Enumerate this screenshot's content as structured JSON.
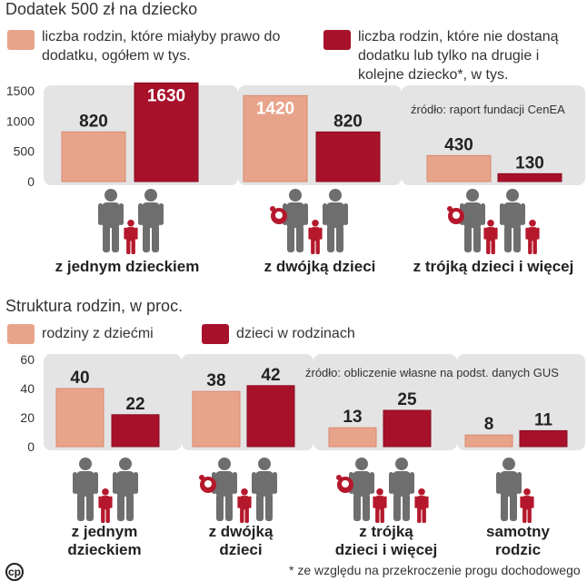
{
  "colors": {
    "light": "#e8a48a",
    "light_edge": "#d9886d",
    "dark": "#a7112a",
    "dark_edge": "#8a0d22",
    "panel": "#e4e4e4",
    "icon_gray": "#6e6e6e",
    "icon_red": "#b5182c"
  },
  "chart1": {
    "title": "Dodatek 500 zł na dziecko",
    "legend_light": "liczba rodzin, które miałyby prawo do dodatku, ogółem w tys.",
    "legend_dark": "liczba rodzin, które nie dostaną dodatku lub tylko na drugie i kolejne dziecko*, w tys.",
    "source": "źródło: raport fundacji CenEA"
  },
  "chart2": {
    "title": "Struktura rodzin, w proc.",
    "legend_light": "rodziny z dziećmi",
    "legend_dark": "dzieci w rodzinach",
    "source": "źródło: obliczenie własne na podst. danych GUS"
  },
  "chart_data": [
    {
      "type": "bar",
      "title": "Dodatek 500 zł na dziecko",
      "categories": [
        "z jednym dzieckiem",
        "z dwójką dzieci",
        "z trójką dzieci i więcej"
      ],
      "series": [
        {
          "name": "liczba rodzin, które miałyby prawo do dodatku, ogółem w tys.",
          "values": [
            820,
            1420,
            430
          ]
        },
        {
          "name": "liczba rodzin, które nie dostaną dodatku lub tylko na drugie i kolejne dziecko*, w tys.",
          "values": [
            1630,
            820,
            130
          ]
        }
      ],
      "yticks": [
        "0",
        "500",
        "1000",
        "1500"
      ],
      "ylim": [
        0,
        1500
      ],
      "ylabel": "",
      "xlabel": ""
    },
    {
      "type": "bar",
      "title": "Struktura rodzin, w proc.",
      "categories": [
        "z jednym dzieckiem",
        "z dwójką dzieci",
        "z trójką dzieci i więcej",
        "samotny rodzic"
      ],
      "series": [
        {
          "name": "rodziny z dziećmi",
          "values": [
            40,
            38,
            13,
            8
          ]
        },
        {
          "name": "dzieci w rodzinach",
          "values": [
            22,
            42,
            25,
            11
          ]
        }
      ],
      "yticks": [
        "0",
        "20",
        "40",
        "60"
      ],
      "ylim": [
        0,
        60
      ],
      "ylabel": "",
      "xlabel": ""
    }
  ],
  "chart1_labels": [
    "z jednym dzieckiem",
    "z dwójką dzieci",
    "z trójką dzieci i więcej"
  ],
  "chart2_labels": [
    [
      "z jednym",
      "dzieckiem"
    ],
    [
      "z dwójką",
      "dzieci"
    ],
    [
      "z trójką",
      "dzieci i więcej"
    ],
    [
      "samotny",
      "rodzic"
    ]
  ],
  "footnote": "* ze względu na przekroczenie progu dochodowego",
  "logo": "cp"
}
